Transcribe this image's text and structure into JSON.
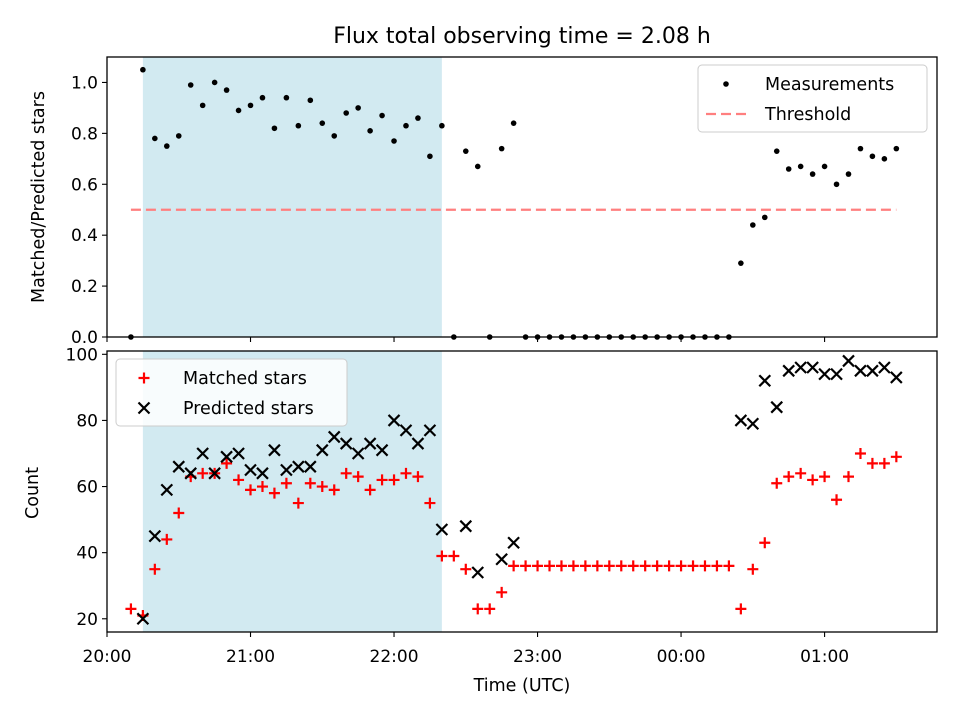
{
  "chart_data": [
    {
      "type": "scatter",
      "title": "Flux total observing time = 2.08 h",
      "xlabel": "",
      "ylabel": "Matched/Predicted stars",
      "x_axis": "time",
      "xlim": [
        "20:00",
        "01:47"
      ],
      "ylim": [
        0,
        1.1
      ],
      "yticks": [
        "0.0",
        "0.2",
        "0.4",
        "0.6",
        "0.8",
        "1.0"
      ],
      "grid": false,
      "legend_position": "top-right",
      "shaded_interval": [
        "20:15",
        "22:20"
      ],
      "shaded_color": "#add8e6",
      "series": [
        {
          "name": "Measurements",
          "marker": "dot",
          "color": "#000000",
          "points": [
            [
              "20:10",
              0.0
            ],
            [
              "20:15",
              1.05
            ],
            [
              "20:20",
              0.78
            ],
            [
              "20:25",
              0.75
            ],
            [
              "20:30",
              0.79
            ],
            [
              "20:35",
              0.99
            ],
            [
              "20:40",
              0.91
            ],
            [
              "20:45",
              1.0
            ],
            [
              "20:50",
              0.97
            ],
            [
              "20:55",
              0.89
            ],
            [
              "21:00",
              0.91
            ],
            [
              "21:05",
              0.94
            ],
            [
              "21:10",
              0.82
            ],
            [
              "21:15",
              0.94
            ],
            [
              "21:20",
              0.83
            ],
            [
              "21:25",
              0.93
            ],
            [
              "21:30",
              0.84
            ],
            [
              "21:35",
              0.79
            ],
            [
              "21:40",
              0.88
            ],
            [
              "21:45",
              0.9
            ],
            [
              "21:50",
              0.81
            ],
            [
              "21:55",
              0.87
            ],
            [
              "22:00",
              0.77
            ],
            [
              "22:05",
              0.83
            ],
            [
              "22:10",
              0.86
            ],
            [
              "22:15",
              0.71
            ],
            [
              "22:20",
              0.83
            ],
            [
              "22:25",
              0.0
            ],
            [
              "22:30",
              0.73
            ],
            [
              "22:35",
              0.67
            ],
            [
              "22:40",
              0.0
            ],
            [
              "22:45",
              0.74
            ],
            [
              "22:50",
              0.84
            ],
            [
              "22:55",
              0.0
            ],
            [
              "23:00",
              0.0
            ],
            [
              "23:05",
              0.0
            ],
            [
              "23:10",
              0.0
            ],
            [
              "23:15",
              0.0
            ],
            [
              "23:20",
              0.0
            ],
            [
              "23:25",
              0.0
            ],
            [
              "23:30",
              0.0
            ],
            [
              "23:35",
              0.0
            ],
            [
              "23:40",
              0.0
            ],
            [
              "23:45",
              0.0
            ],
            [
              "23:50",
              0.0
            ],
            [
              "23:55",
              0.0
            ],
            [
              "00:00",
              0.0
            ],
            [
              "00:05",
              0.0
            ],
            [
              "00:10",
              0.0
            ],
            [
              "00:15",
              0.0
            ],
            [
              "00:20",
              0.0
            ],
            [
              "00:25",
              0.29
            ],
            [
              "00:30",
              0.44
            ],
            [
              "00:35",
              0.47
            ],
            [
              "00:40",
              0.73
            ],
            [
              "00:45",
              0.66
            ],
            [
              "00:50",
              0.67
            ],
            [
              "00:55",
              0.64
            ],
            [
              "01:00",
              0.67
            ],
            [
              "01:05",
              0.6
            ],
            [
              "01:10",
              0.64
            ],
            [
              "01:15",
              0.74
            ],
            [
              "01:20",
              0.71
            ],
            [
              "01:25",
              0.7
            ],
            [
              "01:30",
              0.74
            ]
          ]
        },
        {
          "name": "Threshold",
          "marker": "dashed-line",
          "color": "#ff7f7f",
          "points": [
            [
              "20:10",
              0.5
            ],
            [
              "01:30",
              0.5
            ]
          ]
        }
      ]
    },
    {
      "type": "scatter",
      "title": "",
      "xlabel": "Time (UTC)",
      "ylabel": "Count",
      "x_axis": "time",
      "xlim": [
        "20:00",
        "01:47"
      ],
      "ylim": [
        16,
        101
      ],
      "xticks": [
        "20:00",
        "21:00",
        "22:00",
        "23:00",
        "00:00",
        "01:00"
      ],
      "yticks": [
        "20",
        "40",
        "60",
        "80",
        "100"
      ],
      "grid": false,
      "legend_position": "top-left",
      "shaded_interval": [
        "20:15",
        "22:20"
      ],
      "shaded_color": "#add8e6",
      "series": [
        {
          "name": "Matched stars",
          "marker": "plus",
          "color": "#ff0000",
          "points": [
            [
              "20:10",
              23
            ],
            [
              "20:15",
              21
            ],
            [
              "20:20",
              35
            ],
            [
              "20:25",
              44
            ],
            [
              "20:30",
              52
            ],
            [
              "20:35",
              63
            ],
            [
              "20:40",
              64
            ],
            [
              "20:45",
              64
            ],
            [
              "20:50",
              67
            ],
            [
              "20:55",
              62
            ],
            [
              "21:00",
              59
            ],
            [
              "21:05",
              60
            ],
            [
              "21:10",
              58
            ],
            [
              "21:15",
              61
            ],
            [
              "21:20",
              55
            ],
            [
              "21:25",
              61
            ],
            [
              "21:30",
              60
            ],
            [
              "21:35",
              59
            ],
            [
              "21:40",
              64
            ],
            [
              "21:45",
              63
            ],
            [
              "21:50",
              59
            ],
            [
              "21:55",
              62
            ],
            [
              "22:00",
              62
            ],
            [
              "22:05",
              64
            ],
            [
              "22:10",
              63
            ],
            [
              "22:15",
              55
            ],
            [
              "22:20",
              39
            ],
            [
              "22:25",
              39
            ],
            [
              "22:30",
              35
            ],
            [
              "22:35",
              23
            ],
            [
              "22:40",
              23
            ],
            [
              "22:45",
              28
            ],
            [
              "22:50",
              36
            ],
            [
              "22:55",
              36
            ],
            [
              "23:00",
              36
            ],
            [
              "23:05",
              36
            ],
            [
              "23:10",
              36
            ],
            [
              "23:15",
              36
            ],
            [
              "23:20",
              36
            ],
            [
              "23:25",
              36
            ],
            [
              "23:30",
              36
            ],
            [
              "23:35",
              36
            ],
            [
              "23:40",
              36
            ],
            [
              "23:45",
              36
            ],
            [
              "23:50",
              36
            ],
            [
              "23:55",
              36
            ],
            [
              "00:00",
              36
            ],
            [
              "00:05",
              36
            ],
            [
              "00:10",
              36
            ],
            [
              "00:15",
              36
            ],
            [
              "00:20",
              36
            ],
            [
              "00:25",
              23
            ],
            [
              "00:30",
              35
            ],
            [
              "00:35",
              43
            ],
            [
              "00:40",
              61
            ],
            [
              "00:45",
              63
            ],
            [
              "00:50",
              64
            ],
            [
              "00:55",
              62
            ],
            [
              "01:00",
              63
            ],
            [
              "01:05",
              56
            ],
            [
              "01:10",
              63
            ],
            [
              "01:15",
              70
            ],
            [
              "01:20",
              67
            ],
            [
              "01:25",
              67
            ],
            [
              "01:30",
              69
            ]
          ]
        },
        {
          "name": "Predicted stars",
          "marker": "x",
          "color": "#000000",
          "points": [
            [
              "20:15",
              20
            ],
            [
              "20:20",
              45
            ],
            [
              "20:25",
              59
            ],
            [
              "20:30",
              66
            ],
            [
              "20:35",
              64
            ],
            [
              "20:40",
              70
            ],
            [
              "20:45",
              64
            ],
            [
              "20:50",
              69
            ],
            [
              "20:55",
              70
            ],
            [
              "21:00",
              65
            ],
            [
              "21:05",
              64
            ],
            [
              "21:10",
              71
            ],
            [
              "21:15",
              65
            ],
            [
              "21:20",
              66
            ],
            [
              "21:25",
              66
            ],
            [
              "21:30",
              71
            ],
            [
              "21:35",
              75
            ],
            [
              "21:40",
              73
            ],
            [
              "21:45",
              70
            ],
            [
              "21:50",
              73
            ],
            [
              "21:55",
              71
            ],
            [
              "22:00",
              80
            ],
            [
              "22:05",
              77
            ],
            [
              "22:10",
              73
            ],
            [
              "22:15",
              77
            ],
            [
              "22:20",
              47
            ],
            [
              "22:30",
              48
            ],
            [
              "22:35",
              34
            ],
            [
              "22:45",
              38
            ],
            [
              "22:50",
              43
            ],
            [
              "00:25",
              80
            ],
            [
              "00:30",
              79
            ],
            [
              "00:35",
              92
            ],
            [
              "00:40",
              84
            ],
            [
              "00:45",
              95
            ],
            [
              "00:50",
              96
            ],
            [
              "00:55",
              96
            ],
            [
              "01:00",
              94
            ],
            [
              "01:05",
              94
            ],
            [
              "01:10",
              98
            ],
            [
              "01:15",
              95
            ],
            [
              "01:20",
              95
            ],
            [
              "01:25",
              96
            ],
            [
              "01:30",
              93
            ]
          ]
        }
      ]
    }
  ]
}
